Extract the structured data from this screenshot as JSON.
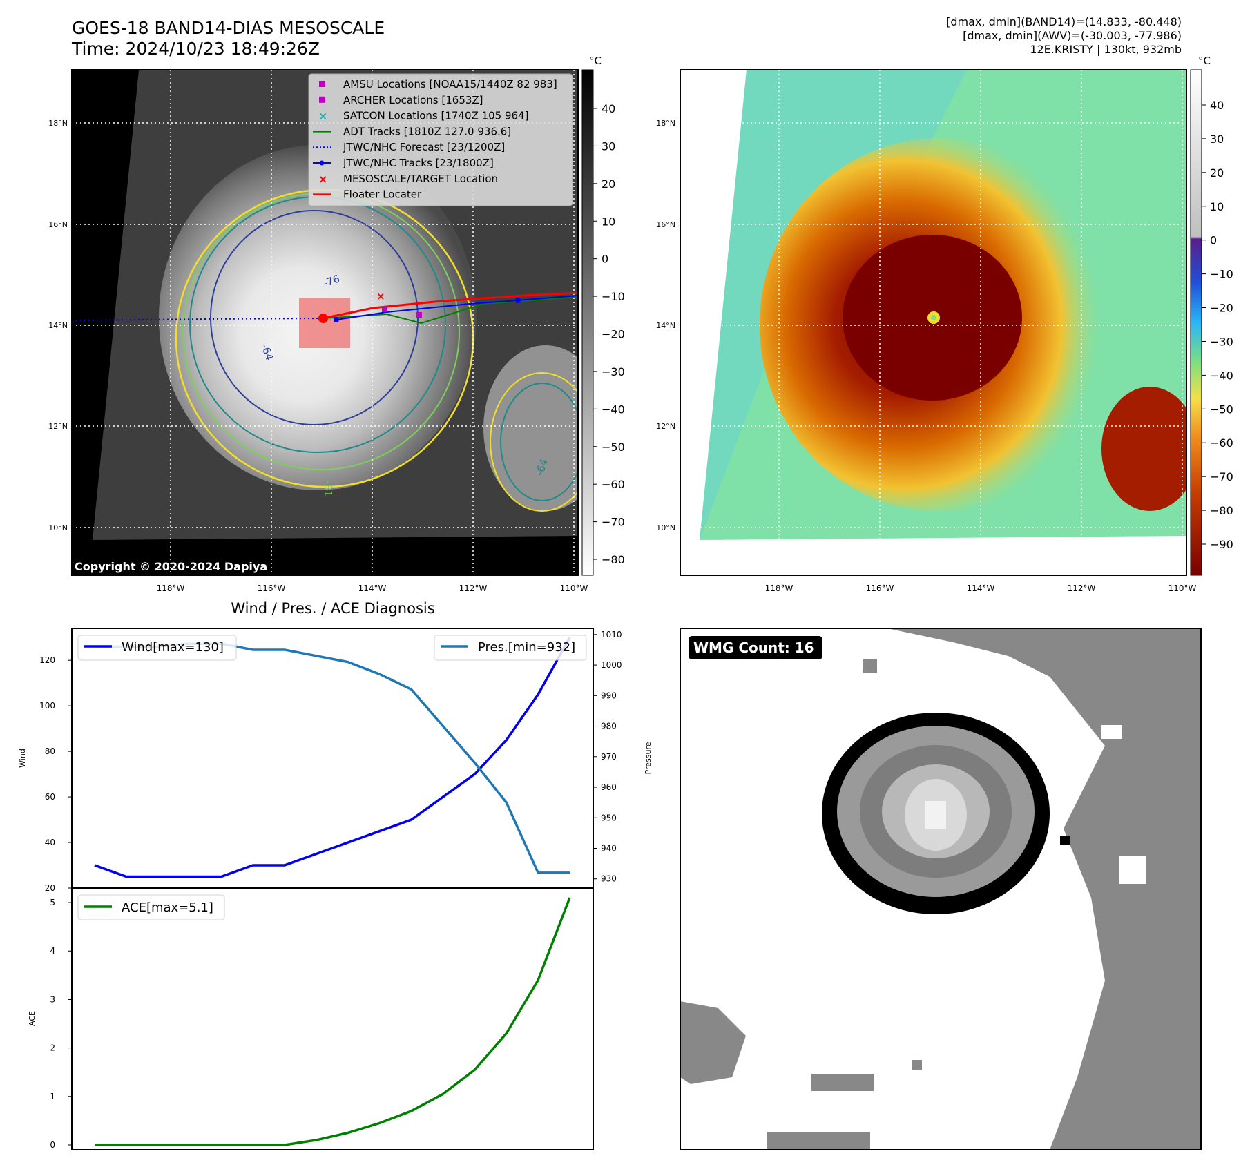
{
  "header": {
    "title_line1": "GOES-18 BAND14-DIAS MESOSCALE",
    "title_line2": "Time: 2024/10/23 18:49:26Z",
    "info_line1": "[dmax, dmin](BAND14)=(14.833, -80.448)",
    "info_line2": "[dmax, dmin](AWV)=(-30.003, -77.986)",
    "info_line3": "12E.KRISTY | 130kt, 932mb"
  },
  "map": {
    "lat_labels": [
      "18°N",
      "16°N",
      "14°N",
      "12°N",
      "10°N"
    ],
    "lon_labels": [
      "118°W",
      "116°W",
      "114°W",
      "112°W",
      "110°W"
    ],
    "copyright": "Copyright © 2020-2024 Dapiya",
    "contour_labels": [
      "-76",
      "-64",
      "-31",
      "-64"
    ],
    "legend": [
      {
        "label": "AMSU Locations [NOAA15/1440Z 82 983]",
        "color": "#c000c0",
        "marker": "square"
      },
      {
        "label": "ARCHER Locations [1653Z]",
        "color": "#c000c0",
        "marker": "square"
      },
      {
        "label": "SATCON Locations [1740Z 105 964]",
        "color": "#20b2aa",
        "marker": "x"
      },
      {
        "label": "ADT Tracks [1810Z 127.0 936.6]",
        "color": "#008000",
        "marker": "line"
      },
      {
        "label": "JTWC/NHC Forecast [23/1200Z]",
        "color": "#0000ff",
        "marker": "dotted"
      },
      {
        "label": "JTWC/NHC Tracks [23/1800Z]",
        "color": "#0000ff",
        "marker": "line-dot"
      },
      {
        "label": "MESOSCALE/TARGET Location",
        "color": "#ff0000",
        "marker": "x"
      },
      {
        "label": "Floater Locater",
        "color": "#ff0000",
        "marker": "line"
      }
    ]
  },
  "colorbar_gray": {
    "unit": "°C",
    "ticks": [
      "40",
      "30",
      "20",
      "10",
      "0",
      "−10",
      "−20",
      "−30",
      "−40",
      "−50",
      "−60",
      "−70",
      "−80"
    ]
  },
  "colorbar_color": {
    "unit": "°C",
    "ticks": [
      "40",
      "30",
      "20",
      "10",
      "0",
      "−10",
      "−20",
      "−30",
      "−40",
      "−50",
      "−60",
      "−70",
      "−80",
      "−90"
    ]
  },
  "wmg": {
    "label": "WMG Count: 16"
  },
  "chart_data": [
    {
      "type": "line",
      "title": "Wind / Pres. / ACE Diagnosis",
      "x": [
        0,
        1,
        2,
        3,
        4,
        5,
        6,
        7,
        8,
        9,
        10,
        11,
        12,
        13,
        14,
        15
      ],
      "ylabel": "Wind",
      "ylabel_right": "Pressure",
      "ylim": [
        20,
        134
      ],
      "ylim_right": [
        927,
        1012
      ],
      "yticks": [
        "20",
        "40",
        "60",
        "80",
        "100",
        "120"
      ],
      "yticks_right": [
        "930",
        "940",
        "950",
        "960",
        "970",
        "980",
        "990",
        "1000",
        "1010"
      ],
      "grid": false,
      "legend_placement": "top-left / top-right",
      "series": [
        {
          "name": "Wind[max=130]",
          "axis": "left",
          "color": "#0000ee",
          "values": [
            30,
            25,
            25,
            25,
            25,
            30,
            30,
            35,
            40,
            45,
            50,
            60,
            70,
            85,
            105,
            130
          ]
        },
        {
          "name": "Pres.[min=932]",
          "axis": "right",
          "color": "#1f77b4",
          "values": [
            1006,
            1006,
            1006,
            1007,
            1007,
            1005,
            1005,
            1003,
            1001,
            997,
            992,
            980,
            968,
            955,
            932,
            932
          ]
        }
      ]
    },
    {
      "type": "line",
      "ylabel": "ACE",
      "ylim": [
        -0.1,
        5.3
      ],
      "yticks": [
        "0",
        "1",
        "2",
        "3",
        "4",
        "5"
      ],
      "grid": false,
      "legend_placement": "top-left",
      "series": [
        {
          "name": "ACE[max=5.1]",
          "color": "#008000",
          "values": [
            0,
            0,
            0,
            0,
            0,
            0,
            0,
            0.1,
            0.25,
            0.45,
            0.7,
            1.05,
            1.55,
            2.3,
            3.4,
            5.1
          ]
        }
      ]
    }
  ],
  "colors": {
    "wind": "#0000ee",
    "pressure": "#1f77b4",
    "ace": "#008000",
    "floater": "#ff0000"
  }
}
